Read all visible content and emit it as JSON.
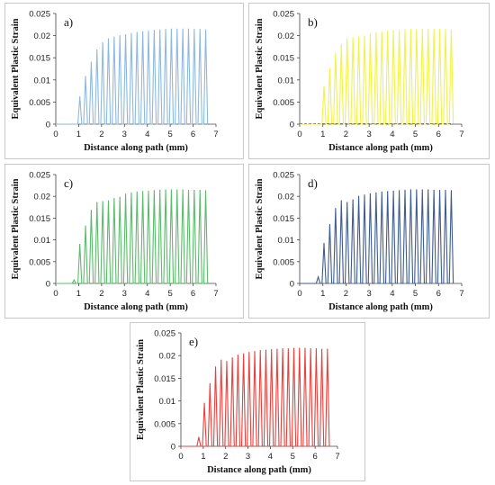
{
  "chart_data": [
    {
      "id": "a",
      "type": "line",
      "panel_label": "a)",
      "color": "#8EB9DE",
      "xlabel": "Distance along path (mm)",
      "ylabel": "Equivalent Plastic Strain",
      "xlim": [
        0,
        7
      ],
      "ylim": [
        0,
        0.025
      ],
      "xticks": [
        "0",
        "1",
        "2",
        "3",
        "4",
        "5",
        "6",
        "7"
      ],
      "yticks": [
        "0",
        "0.005",
        "0.01",
        "0.015",
        "0.02",
        "0.025"
      ],
      "grid": false,
      "peaks": [
        {
          "x": 1.05,
          "y": 0.0062
        },
        {
          "x": 1.3,
          "y": 0.0108
        },
        {
          "x": 1.55,
          "y": 0.014
        },
        {
          "x": 1.8,
          "y": 0.0168
        },
        {
          "x": 2.05,
          "y": 0.0184
        },
        {
          "x": 2.3,
          "y": 0.0193
        },
        {
          "x": 2.55,
          "y": 0.0197
        },
        {
          "x": 2.8,
          "y": 0.02
        },
        {
          "x": 3.05,
          "y": 0.0202
        },
        {
          "x": 3.3,
          "y": 0.0205
        },
        {
          "x": 3.55,
          "y": 0.0207
        },
        {
          "x": 3.8,
          "y": 0.0209
        },
        {
          "x": 4.05,
          "y": 0.021
        },
        {
          "x": 4.3,
          "y": 0.0212
        },
        {
          "x": 4.55,
          "y": 0.0213
        },
        {
          "x": 4.8,
          "y": 0.0214
        },
        {
          "x": 5.05,
          "y": 0.0215
        },
        {
          "x": 5.3,
          "y": 0.0215
        },
        {
          "x": 5.55,
          "y": 0.0215
        },
        {
          "x": 5.8,
          "y": 0.0215
        },
        {
          "x": 6.05,
          "y": 0.0214
        },
        {
          "x": 6.3,
          "y": 0.0214
        },
        {
          "x": 6.55,
          "y": 0.0213
        }
      ]
    },
    {
      "id": "b",
      "type": "line",
      "panel_label": "b)",
      "color": "#F2F24A",
      "xlabel": "Distance along path (mm)",
      "ylabel": "Equivalent Plastic Strain",
      "xlim": [
        0,
        7
      ],
      "ylim": [
        0,
        0.025
      ],
      "xticks": [
        "0",
        "1",
        "2",
        "3",
        "4",
        "5",
        "6",
        "7"
      ],
      "yticks": [
        "0",
        "0.005",
        "0.01",
        "0.015",
        "0.02",
        "0.025"
      ],
      "grid": false,
      "peaks": [
        {
          "x": 1.05,
          "y": 0.0085
        },
        {
          "x": 1.3,
          "y": 0.0125
        },
        {
          "x": 1.55,
          "y": 0.016
        },
        {
          "x": 1.8,
          "y": 0.018
        },
        {
          "x": 2.05,
          "y": 0.0193
        },
        {
          "x": 2.3,
          "y": 0.0195
        },
        {
          "x": 2.55,
          "y": 0.0197
        },
        {
          "x": 2.8,
          "y": 0.0199
        },
        {
          "x": 3.05,
          "y": 0.0203
        },
        {
          "x": 3.3,
          "y": 0.0206
        },
        {
          "x": 3.55,
          "y": 0.0208
        },
        {
          "x": 3.8,
          "y": 0.021
        },
        {
          "x": 4.05,
          "y": 0.0211
        },
        {
          "x": 4.3,
          "y": 0.0212
        },
        {
          "x": 4.55,
          "y": 0.0213
        },
        {
          "x": 4.8,
          "y": 0.0214
        },
        {
          "x": 5.05,
          "y": 0.0214
        },
        {
          "x": 5.3,
          "y": 0.0215
        },
        {
          "x": 5.55,
          "y": 0.0215
        },
        {
          "x": 5.8,
          "y": 0.0214
        },
        {
          "x": 6.05,
          "y": 0.0214
        },
        {
          "x": 6.3,
          "y": 0.0214
        },
        {
          "x": 6.55,
          "y": 0.0213
        }
      ]
    },
    {
      "id": "c",
      "type": "line",
      "panel_label": "c)",
      "color": "#5CBB6C",
      "xlabel": "Distance along path (mm)",
      "ylabel": "Equivalent Plastic Strain",
      "xlim": [
        0,
        7
      ],
      "ylim": [
        0,
        0.025
      ],
      "xticks": [
        "0",
        "1",
        "2",
        "3",
        "4",
        "5",
        "6",
        "7"
      ],
      "yticks": [
        "0",
        "0.005",
        "0.01",
        "0.015",
        "0.02",
        "0.025"
      ],
      "grid": false,
      "peaks": [
        {
          "x": 0.8,
          "y": 0.0008
        },
        {
          "x": 1.05,
          "y": 0.009
        },
        {
          "x": 1.3,
          "y": 0.0132
        },
        {
          "x": 1.55,
          "y": 0.0168
        },
        {
          "x": 1.8,
          "y": 0.0186
        },
        {
          "x": 2.05,
          "y": 0.0188
        },
        {
          "x": 2.3,
          "y": 0.019
        },
        {
          "x": 2.55,
          "y": 0.0195
        },
        {
          "x": 2.8,
          "y": 0.0198
        },
        {
          "x": 3.05,
          "y": 0.0205
        },
        {
          "x": 3.3,
          "y": 0.0208
        },
        {
          "x": 3.55,
          "y": 0.021
        },
        {
          "x": 3.8,
          "y": 0.0211
        },
        {
          "x": 4.05,
          "y": 0.0212
        },
        {
          "x": 4.3,
          "y": 0.0213
        },
        {
          "x": 4.55,
          "y": 0.0214
        },
        {
          "x": 4.8,
          "y": 0.0215
        },
        {
          "x": 5.05,
          "y": 0.0215
        },
        {
          "x": 5.3,
          "y": 0.0215
        },
        {
          "x": 5.55,
          "y": 0.0215
        },
        {
          "x": 5.8,
          "y": 0.0214
        },
        {
          "x": 6.05,
          "y": 0.0214
        },
        {
          "x": 6.3,
          "y": 0.0214
        },
        {
          "x": 6.55,
          "y": 0.0213
        }
      ]
    },
    {
      "id": "d",
      "type": "line",
      "panel_label": "d)",
      "color": "#3F5D8C",
      "xlabel": "Distance along path (mm)",
      "ylabel": "Equivalent Plastic Strain",
      "xlim": [
        0,
        7
      ],
      "ylim": [
        0,
        0.025
      ],
      "xticks": [
        "0",
        "1",
        "2",
        "3",
        "4",
        "5",
        "6",
        "7"
      ],
      "yticks": [
        "0",
        "0.005",
        "0.01",
        "0.015",
        "0.02",
        "0.025"
      ],
      "grid": false,
      "peaks": [
        {
          "x": 0.8,
          "y": 0.0015
        },
        {
          "x": 1.05,
          "y": 0.0092
        },
        {
          "x": 1.3,
          "y": 0.0135
        },
        {
          "x": 1.55,
          "y": 0.0172
        },
        {
          "x": 1.8,
          "y": 0.019
        },
        {
          "x": 2.05,
          "y": 0.0186
        },
        {
          "x": 2.3,
          "y": 0.0192
        },
        {
          "x": 2.55,
          "y": 0.02
        },
        {
          "x": 2.8,
          "y": 0.0203
        },
        {
          "x": 3.05,
          "y": 0.0206
        },
        {
          "x": 3.3,
          "y": 0.0208
        },
        {
          "x": 3.55,
          "y": 0.021
        },
        {
          "x": 3.8,
          "y": 0.0211
        },
        {
          "x": 4.05,
          "y": 0.0212
        },
        {
          "x": 4.3,
          "y": 0.0213
        },
        {
          "x": 4.55,
          "y": 0.0214
        },
        {
          "x": 4.8,
          "y": 0.0215
        },
        {
          "x": 5.05,
          "y": 0.0215
        },
        {
          "x": 5.3,
          "y": 0.0215
        },
        {
          "x": 5.55,
          "y": 0.0215
        },
        {
          "x": 5.8,
          "y": 0.0214
        },
        {
          "x": 6.05,
          "y": 0.0214
        },
        {
          "x": 6.3,
          "y": 0.0214
        },
        {
          "x": 6.55,
          "y": 0.0213
        }
      ]
    },
    {
      "id": "e",
      "type": "line",
      "panel_label": "e)",
      "color": "#E8413C",
      "xlabel": "Distance along path (mm)",
      "ylabel": "Equivalent Plastic Strain",
      "xlim": [
        0,
        7
      ],
      "ylim": [
        0,
        0.025
      ],
      "xticks": [
        "0",
        "1",
        "2",
        "3",
        "4",
        "5",
        "6",
        "7"
      ],
      "yticks": [
        "0",
        "0.005",
        "0.01",
        "0.015",
        "0.02",
        "0.025"
      ],
      "grid": false,
      "peaks": [
        {
          "x": 0.8,
          "y": 0.002
        },
        {
          "x": 1.05,
          "y": 0.0095
        },
        {
          "x": 1.3,
          "y": 0.0138
        },
        {
          "x": 1.55,
          "y": 0.0175
        },
        {
          "x": 1.8,
          "y": 0.019
        },
        {
          "x": 2.05,
          "y": 0.0187
        },
        {
          "x": 2.3,
          "y": 0.0195
        },
        {
          "x": 2.55,
          "y": 0.0201
        },
        {
          "x": 2.8,
          "y": 0.0204
        },
        {
          "x": 3.05,
          "y": 0.0207
        },
        {
          "x": 3.3,
          "y": 0.0209
        },
        {
          "x": 3.55,
          "y": 0.0211
        },
        {
          "x": 3.8,
          "y": 0.0212
        },
        {
          "x": 4.05,
          "y": 0.0213
        },
        {
          "x": 4.3,
          "y": 0.0214
        },
        {
          "x": 4.55,
          "y": 0.0215
        },
        {
          "x": 4.8,
          "y": 0.0215
        },
        {
          "x": 5.05,
          "y": 0.0216
        },
        {
          "x": 5.3,
          "y": 0.0216
        },
        {
          "x": 5.55,
          "y": 0.0216
        },
        {
          "x": 5.8,
          "y": 0.0215
        },
        {
          "x": 6.05,
          "y": 0.0215
        },
        {
          "x": 6.3,
          "y": 0.0214
        },
        {
          "x": 6.55,
          "y": 0.0214
        }
      ]
    }
  ]
}
